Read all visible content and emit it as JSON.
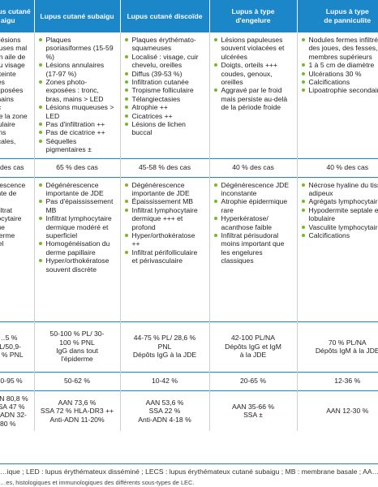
{
  "headers": [
    "Lupus cutané aigu",
    "Lupus cutané  subaigu",
    "Lupus cutané discoïde",
    "Lupus à type\nd'engelure",
    "Lupus à type\nde panniculite"
  ],
  "clinical": [
    [
      "… : lésions",
      "…teuses mal",
      "… en aile de",
      "… du visage",
      "…atteinte zones",
      "…exposées",
      "… mains avec",
      "… de la zone",
      "…lvulaire",
      "…ions buccales,"
    ],
    [
      "Plaques psoriasiformes (15-59 %)",
      "Lésions annulaires (17-97 %)",
      "Zones photo-exposées : tronc, bras, mains > LED",
      "Lésions muqueuses > LED",
      "Pas d'infiltration ++",
      "Pas de cicatrice ++",
      "Séquelles pigmentaires ±"
    ],
    [
      "Plaques érythémato-squameuses",
      "Localisé : visage, cuir chevelu, oreilles",
      "Diffus (39-53 %)",
      "Infiltration cutanée",
      "Tropisme folliculaire",
      "Télangiectasies",
      "Atrophie ++",
      "Cicatrices ++",
      "Lésions de lichen buccal"
    ],
    [
      "Lésions papuleuses souvent violacées et ulcérées",
      "Doigts, orteils +++ coudes, genoux, oreilles",
      "Aggravé par le froid mais persiste au-delà de la période froide"
    ],
    [
      "Nodules fermes infiltrés des joues, des fesses, des membres supérieurs",
      "1 à 5 cm de diamètre",
      "Ulcérations 30 %",
      "Calcifications",
      "Lipoatrophie secondaire"
    ]
  ],
  "prevalence": [
    "% des cas",
    "65 % des cas",
    "45-58 % des cas",
    "40 % des cas",
    "40 % des cas"
  ],
  "histology": [
    [
      "…érescence",
      "…ante de JDE",
      "…nfiltrat",
      "…hocytaire",
      "…que",
      "… derme",
      "…ciel"
    ],
    [
      "Dégénérescence importante de JDE",
      "Pas d'épaississement MB",
      "Infiltrat lymphocytaire dermique modéré et superficiel",
      "Homogénéisation du derme papillaire",
      "Hyper/orthokératose souvent discrète"
    ],
    [
      "Dégénérescence importante de JDE",
      "Épaississement MB",
      "Infiltrat lymphocytaire dermique +++ et profond",
      "Hyper/orthokératose ++",
      "Infiltrat périfolliculaire et périvasculaire"
    ],
    [
      "Dégénérescence JDE inconstante",
      "Atrophie épidermique rare",
      "Hyperkératose/ acanthose faible",
      "Infiltrat périsudoral moins important que les engelures classiques"
    ],
    [
      "Nécrose hyaline du tissu adipeux",
      "Agrégats lymphocytaires",
      "Hypodermite septale et lobulaire",
      "Vasculite lymphocytaire",
      "Calcifications"
    ]
  ],
  "immuno": [
    "…5 % PL/50,9-\n… % PNL",
    "50-100 % PL/ 30-\n100 % PNL\nIgG dans tout\nl'épiderme",
    "44-75 % PL/ 28,6 %\nPNL\nDépôts IgG à la JDE",
    "42-100 PL/NA\nDépôts IgG et IgM\nà la JDE",
    "70 % PL/NA\nDépôts IgM à la JDE"
  ],
  "assoc": [
    "…0-95 %",
    "50-62 %",
    "10-42 %",
    "20-65 %",
    "12-36 %"
  ],
  "serology": [
    "…AN 80,8 %\n…SA 47 %\n…i-ADN 32-80 %",
    "AAN 73,6 %\nSSA 72 % HLA-DR3 ++\nAnti-ADN 11-20%",
    "AAN 53,6 %\nSSA 22 %\nAnti-ADN 4-18 %",
    "AAN 35-66 %\nSSA ±",
    "AAN 12-30 %"
  ],
  "footnote": "…ique ; LED : lupus érythémateux disséminé ; LECS : lupus érythémateux cutané subaigu ; MB : membrane basale ; AA…",
  "caption": "…es, histologiques et immunologiques des différents sous-types de LEC."
}
